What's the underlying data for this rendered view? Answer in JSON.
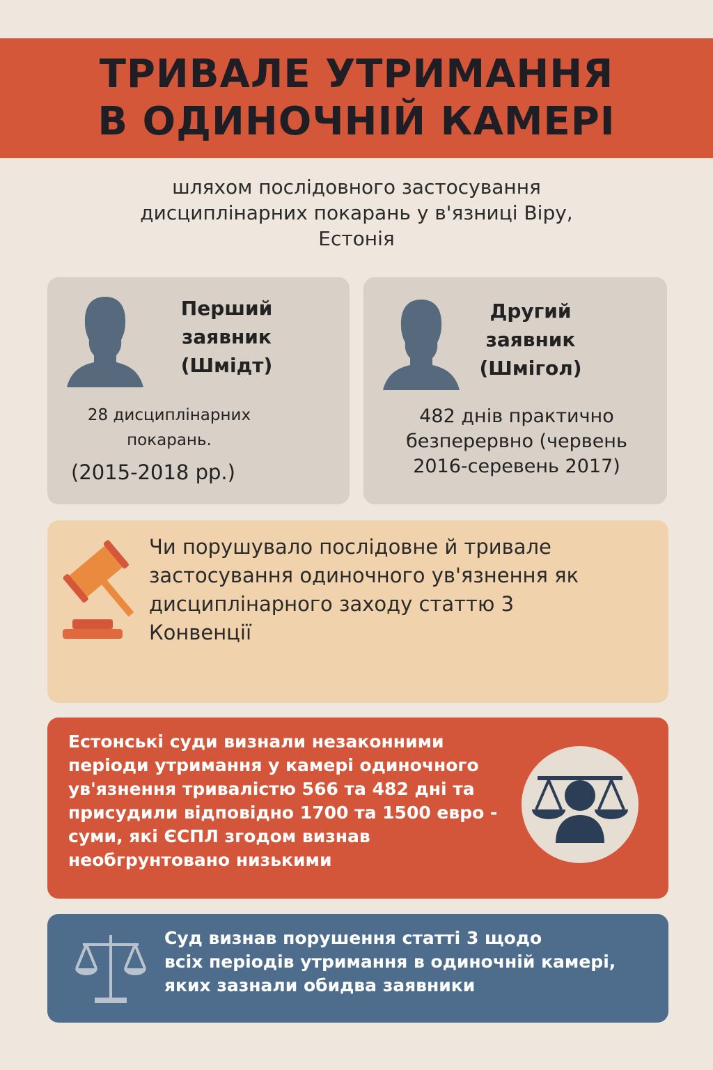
{
  "header": {
    "title_line1": "ТРИВАЛЕ УТРИМАННЯ",
    "title_line2": "В ОДИНОЧНІЙ КАМЕРІ"
  },
  "subtitle": {
    "line1": "шляхом послідовного застосування",
    "line2": "дисциплінарних покарань у в'язниці Віру,",
    "line3": "Естонія"
  },
  "applicants": [
    {
      "name_line1": "Перший",
      "name_line2": "заявник",
      "name_line3": "(Шмідт)",
      "stat_line1": "28 дисциплінарних",
      "stat_line2": "покарань.",
      "period": "(2015-2018 рр.)",
      "icon": "person-silhouette-icon"
    },
    {
      "name_line1": "Другий",
      "name_line2": "заявник",
      "name_line3": "(Шмігол)",
      "stat_line1": "482 днів практично",
      "stat_line2": "безперервно (червень",
      "period": "2016-серевень 2017)",
      "icon": "person-silhouette-icon"
    }
  ],
  "question": {
    "icon": "gavel-icon",
    "line1": "Чи порушувало послідовне й тривале",
    "line2": "застосування одиночного ув'язнення як",
    "line3": "дисциплінарного заходу статтю 3",
    "line4": "Конвенції"
  },
  "domestic": {
    "icon": "scales-person-icon",
    "lines": [
      "Естонські суди визнали незаконними",
      "періоди утримання у камері одиночного",
      "ув'язнення тривалістю 566 та 482 дні та",
      "присудили відповідно 1700 та 1500 евро -",
      "суми, які ЄСПЛ згодом визнав",
      "необгрунтовано низькими"
    ]
  },
  "verdict": {
    "icon": "scales-icon",
    "lines": [
      "Суд визнав порушення статті 3 щодо",
      "всіх періодів утримання в одиночній камері,",
      "яких зазнали обидва заявники"
    ]
  },
  "colors": {
    "background": "#efe7de",
    "header": "#d4573a",
    "card_gray": "#d9d1c8",
    "question": "#f0d3ad",
    "domestic": "#d3563a",
    "verdict": "#4e6d8c",
    "silhouette": "#56697d"
  }
}
